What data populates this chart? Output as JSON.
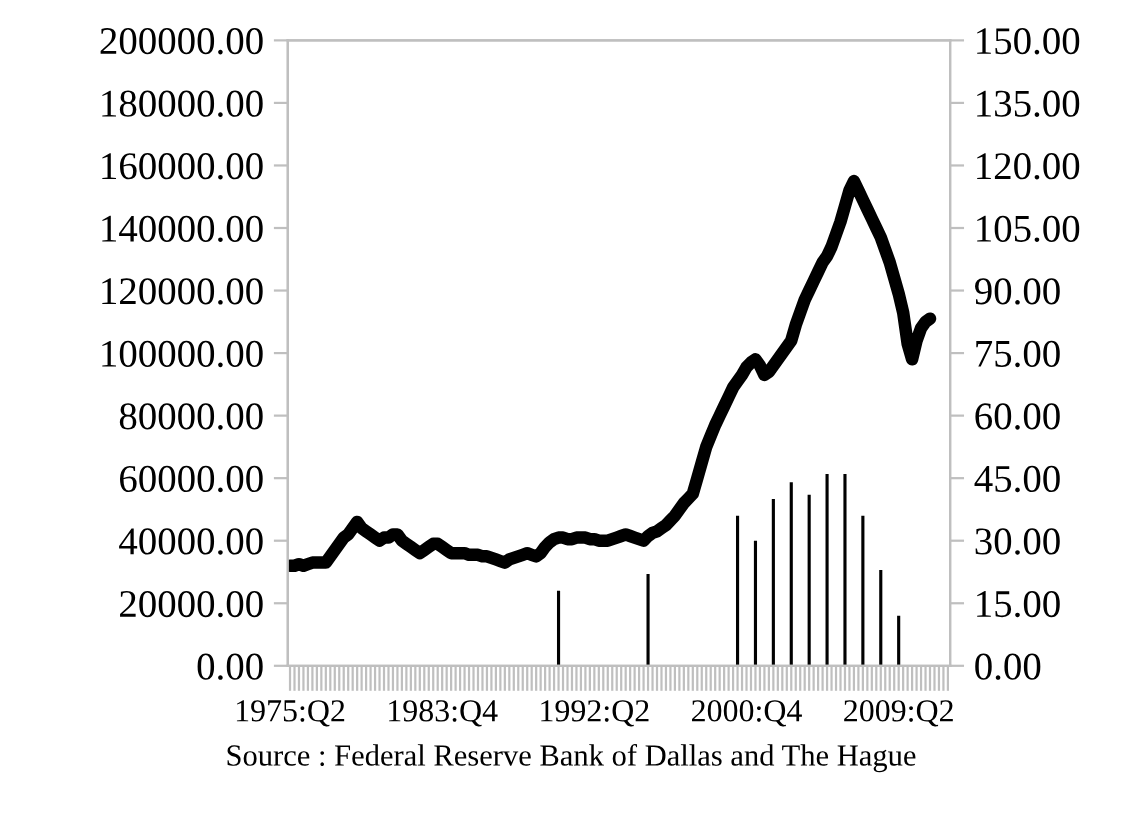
{
  "chart_data": {
    "type": "line",
    "categories": [
      "1975:Q2",
      null,
      null,
      null,
      null,
      null,
      null,
      null,
      null,
      null,
      null,
      null,
      null,
      null,
      null,
      null,
      null,
      null,
      null,
      null,
      null,
      null,
      null,
      null,
      null,
      null,
      null,
      null,
      null,
      null,
      null,
      null,
      null,
      null,
      "1983:Q4",
      null,
      null,
      null,
      null,
      null,
      null,
      null,
      null,
      null,
      null,
      null,
      null,
      null,
      null,
      null,
      null,
      null,
      null,
      null,
      null,
      null,
      null,
      null,
      null,
      null,
      null,
      null,
      null,
      null,
      null,
      null,
      null,
      null,
      "1992:Q2",
      null,
      null,
      null,
      null,
      null,
      null,
      null,
      null,
      null,
      null,
      null,
      null,
      null,
      null,
      null,
      null,
      null,
      null,
      null,
      null,
      null,
      null,
      null,
      null,
      null,
      null,
      null,
      null,
      null,
      null,
      null,
      null,
      null,
      "2000:Q4",
      null,
      null,
      null,
      null,
      null,
      null,
      null,
      null,
      null,
      null,
      null,
      null,
      null,
      null,
      null,
      null,
      null,
      null,
      null,
      null,
      null,
      null,
      null,
      null,
      null,
      null,
      null,
      null,
      null,
      null,
      null,
      null,
      null,
      "2009:Q2",
      null,
      null,
      null,
      null,
      null,
      null,
      null,
      null,
      null,
      null,
      null
    ],
    "series": [
      {
        "color": "#000000",
        "values": [
          32000,
          32000,
          32500,
          32000,
          32500,
          33000,
          33000,
          33000,
          33000,
          35000,
          37000,
          39000,
          41000,
          42000,
          44000,
          46000,
          44000,
          43000,
          42000,
          41000,
          40000,
          41000,
          41000,
          42000,
          42000,
          40000,
          39000,
          38000,
          37000,
          36000,
          37000,
          38000,
          39000,
          39000,
          38000,
          37000,
          36000,
          36000,
          36000,
          36000,
          35500,
          35500,
          35500,
          35000,
          35000,
          34500,
          34000,
          33500,
          33000,
          34000,
          34500,
          35000,
          35500,
          36000,
          35500,
          35000,
          36000,
          38000,
          39500,
          40500,
          41000,
          41000,
          40500,
          40500,
          41000,
          41000,
          41000,
          40500,
          40500,
          40000,
          40000,
          40000,
          40500,
          41000,
          41500,
          42000,
          41500,
          41000,
          40500,
          40000,
          41500,
          42500,
          43000,
          44000,
          45000,
          46500,
          48000,
          50000,
          52000,
          53500,
          55000,
          60000,
          65000,
          70000,
          73500,
          77000,
          80000,
          83000,
          86000,
          89000,
          91000,
          93000,
          95500,
          97000,
          98000,
          96000,
          93000,
          94000,
          96000,
          98000,
          100000,
          102000,
          104000,
          109000,
          113000,
          117000,
          120000,
          123000,
          126000,
          129000,
          131000,
          134000,
          138000,
          142000,
          147000,
          152000,
          155000,
          152000,
          149000,
          146000,
          143000,
          140000,
          137000,
          133000,
          129000,
          124000,
          119000,
          113000,
          103000,
          98000,
          104000,
          108000,
          110000,
          111000,
          null,
          null,
          null,
          null
        ]
      },
      {
        "type": "bar",
        "axis": "y2",
        "color": "#000000",
        "values": [
          null,
          null,
          null,
          null,
          null,
          null,
          null,
          null,
          null,
          null,
          null,
          null,
          null,
          null,
          null,
          null,
          null,
          null,
          null,
          null,
          null,
          null,
          null,
          null,
          null,
          null,
          null,
          null,
          null,
          null,
          null,
          null,
          null,
          null,
          null,
          null,
          null,
          null,
          null,
          null,
          null,
          null,
          null,
          null,
          null,
          null,
          null,
          null,
          null,
          null,
          null,
          null,
          null,
          null,
          null,
          null,
          null,
          null,
          null,
          null,
          18,
          null,
          null,
          null,
          null,
          null,
          null,
          null,
          null,
          null,
          null,
          null,
          null,
          null,
          null,
          null,
          null,
          null,
          null,
          null,
          22,
          null,
          null,
          null,
          null,
          null,
          null,
          null,
          null,
          null,
          null,
          null,
          null,
          null,
          null,
          null,
          null,
          null,
          null,
          null,
          36,
          null,
          null,
          null,
          30,
          null,
          null,
          null,
          40,
          null,
          null,
          null,
          44,
          null,
          null,
          null,
          41,
          null,
          null,
          null,
          46,
          null,
          null,
          null,
          46,
          null,
          null,
          null,
          36,
          null,
          null,
          null,
          23,
          null,
          null,
          null,
          12,
          null,
          null,
          null,
          null,
          null,
          null,
          null,
          null,
          null,
          null,
          null
        ]
      }
    ],
    "ylim": [
      0,
      200000
    ],
    "yticks": [
      {
        "value": 0,
        "label": "0.00"
      },
      {
        "value": 20000,
        "label": "20000.00"
      },
      {
        "value": 40000,
        "label": "40000.00"
      },
      {
        "value": 60000,
        "label": "60000.00"
      },
      {
        "value": 80000,
        "label": "80000.00"
      },
      {
        "value": 100000,
        "label": "100000.00"
      },
      {
        "value": 120000,
        "label": "120000.00"
      },
      {
        "value": 140000,
        "label": "140000.00"
      },
      {
        "value": 160000,
        "label": "160000.00"
      },
      {
        "value": 180000,
        "label": "180000.00"
      },
      {
        "value": 200000,
        "label": "200000.00"
      }
    ],
    "y2lim": [
      0,
      150
    ],
    "y2ticks": [
      {
        "value": 0,
        "label": "0.00"
      },
      {
        "value": 15,
        "label": "15.00"
      },
      {
        "value": 30,
        "label": "30.00"
      },
      {
        "value": 45,
        "label": "45.00"
      },
      {
        "value": 60,
        "label": "60.00"
      },
      {
        "value": 75,
        "label": "75.00"
      },
      {
        "value": 90,
        "label": "90.00"
      },
      {
        "value": 105,
        "label": "105.00"
      },
      {
        "value": 120,
        "label": "120.00"
      },
      {
        "value": 135,
        "label": "135.00"
      },
      {
        "value": 150,
        "label": "150.00"
      }
    ],
    "annotations": [
      "Source : Federal Reserve Bank of Dallas and The Hague"
    ],
    "grid": false,
    "legend": false
  }
}
